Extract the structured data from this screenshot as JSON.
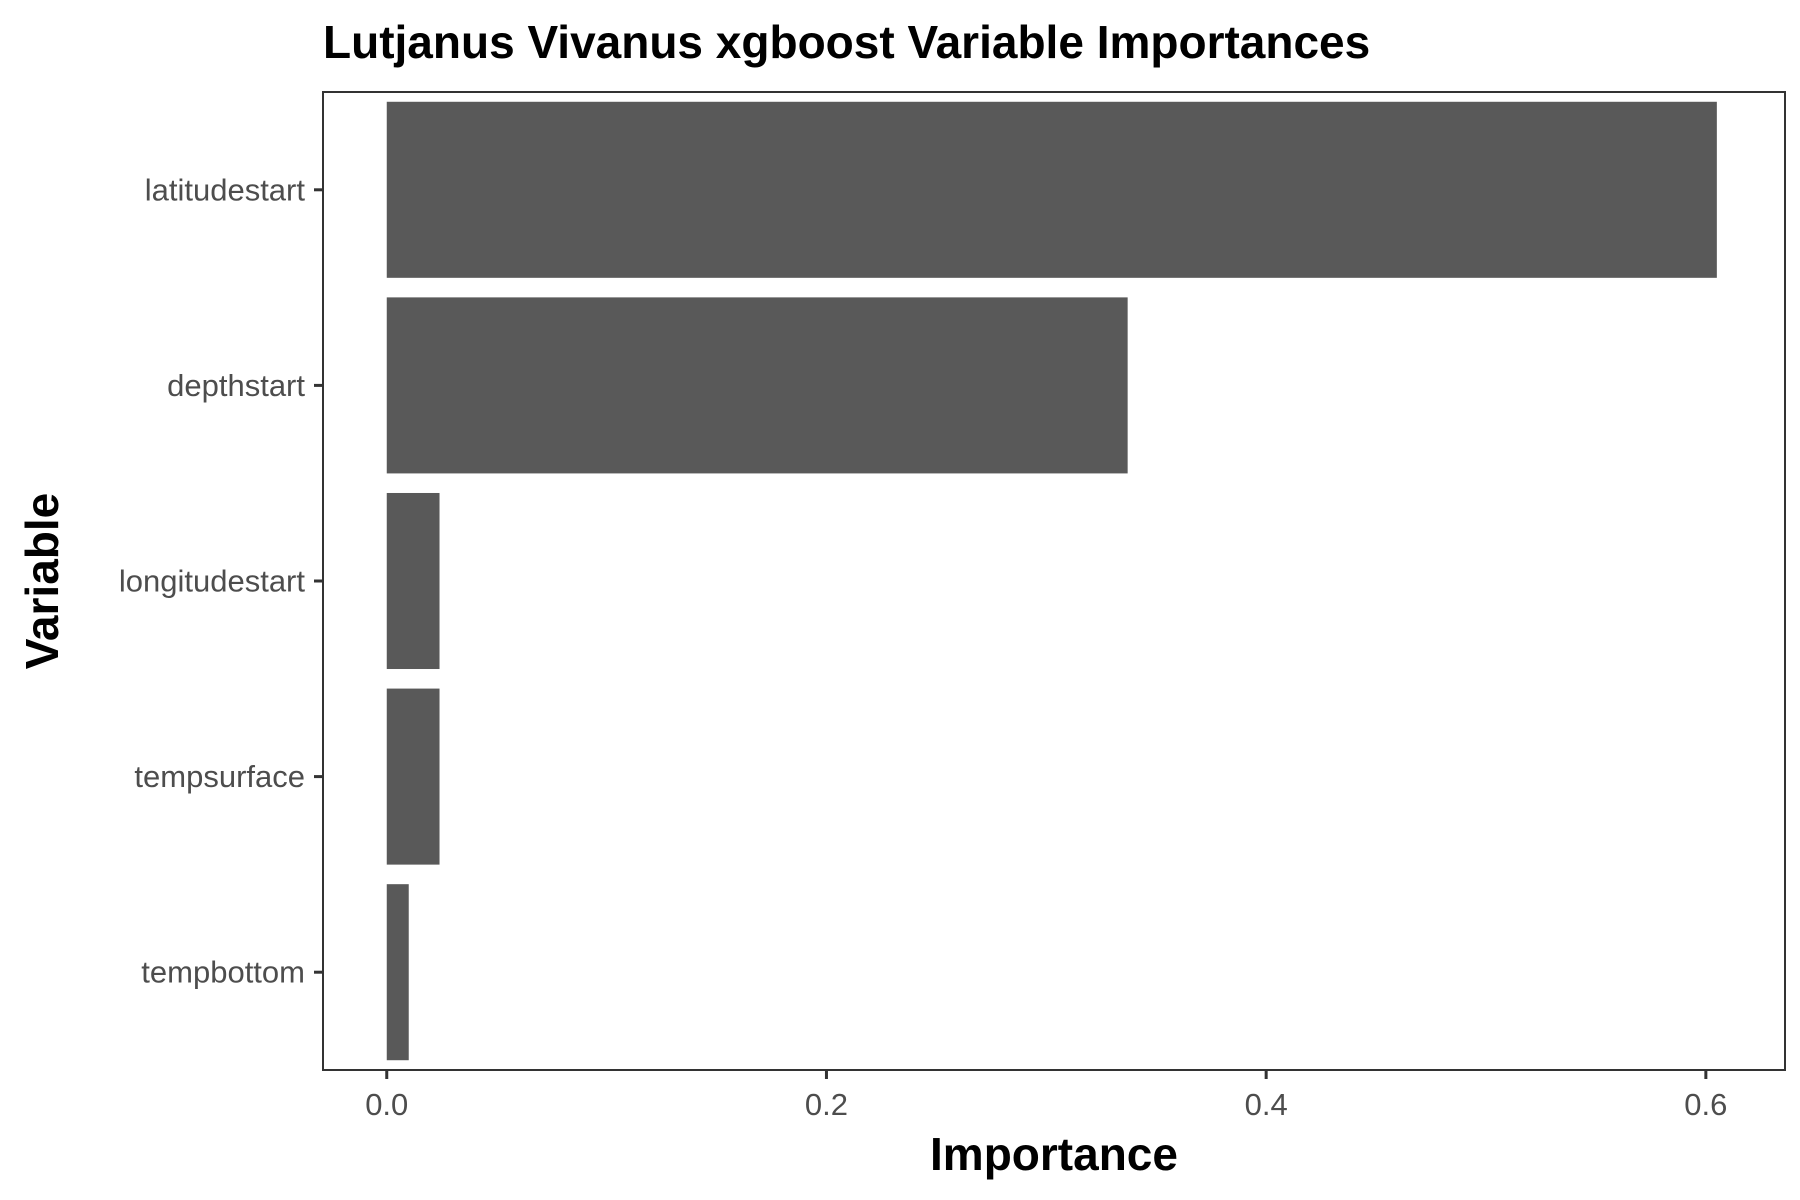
{
  "chart_data": {
    "type": "bar",
    "orientation": "horizontal",
    "title": "Lutjanus Vivanus xgboost Variable Importances",
    "xlabel": "Importance",
    "ylabel": "Variable",
    "categories": [
      "latitudestart",
      "depthstart",
      "longitudestart",
      "tempsurface",
      "tempbottom"
    ],
    "values": [
      0.605,
      0.337,
      0.024,
      0.024,
      0.01
    ],
    "xlim": [
      -0.029,
      0.636
    ],
    "xticks": [
      0.0,
      0.2,
      0.4,
      0.6
    ],
    "xtick_labels": [
      "0.0",
      "0.2",
      "0.4",
      "0.6"
    ],
    "grid": false,
    "legend": "none",
    "bar_color": "#595959"
  }
}
